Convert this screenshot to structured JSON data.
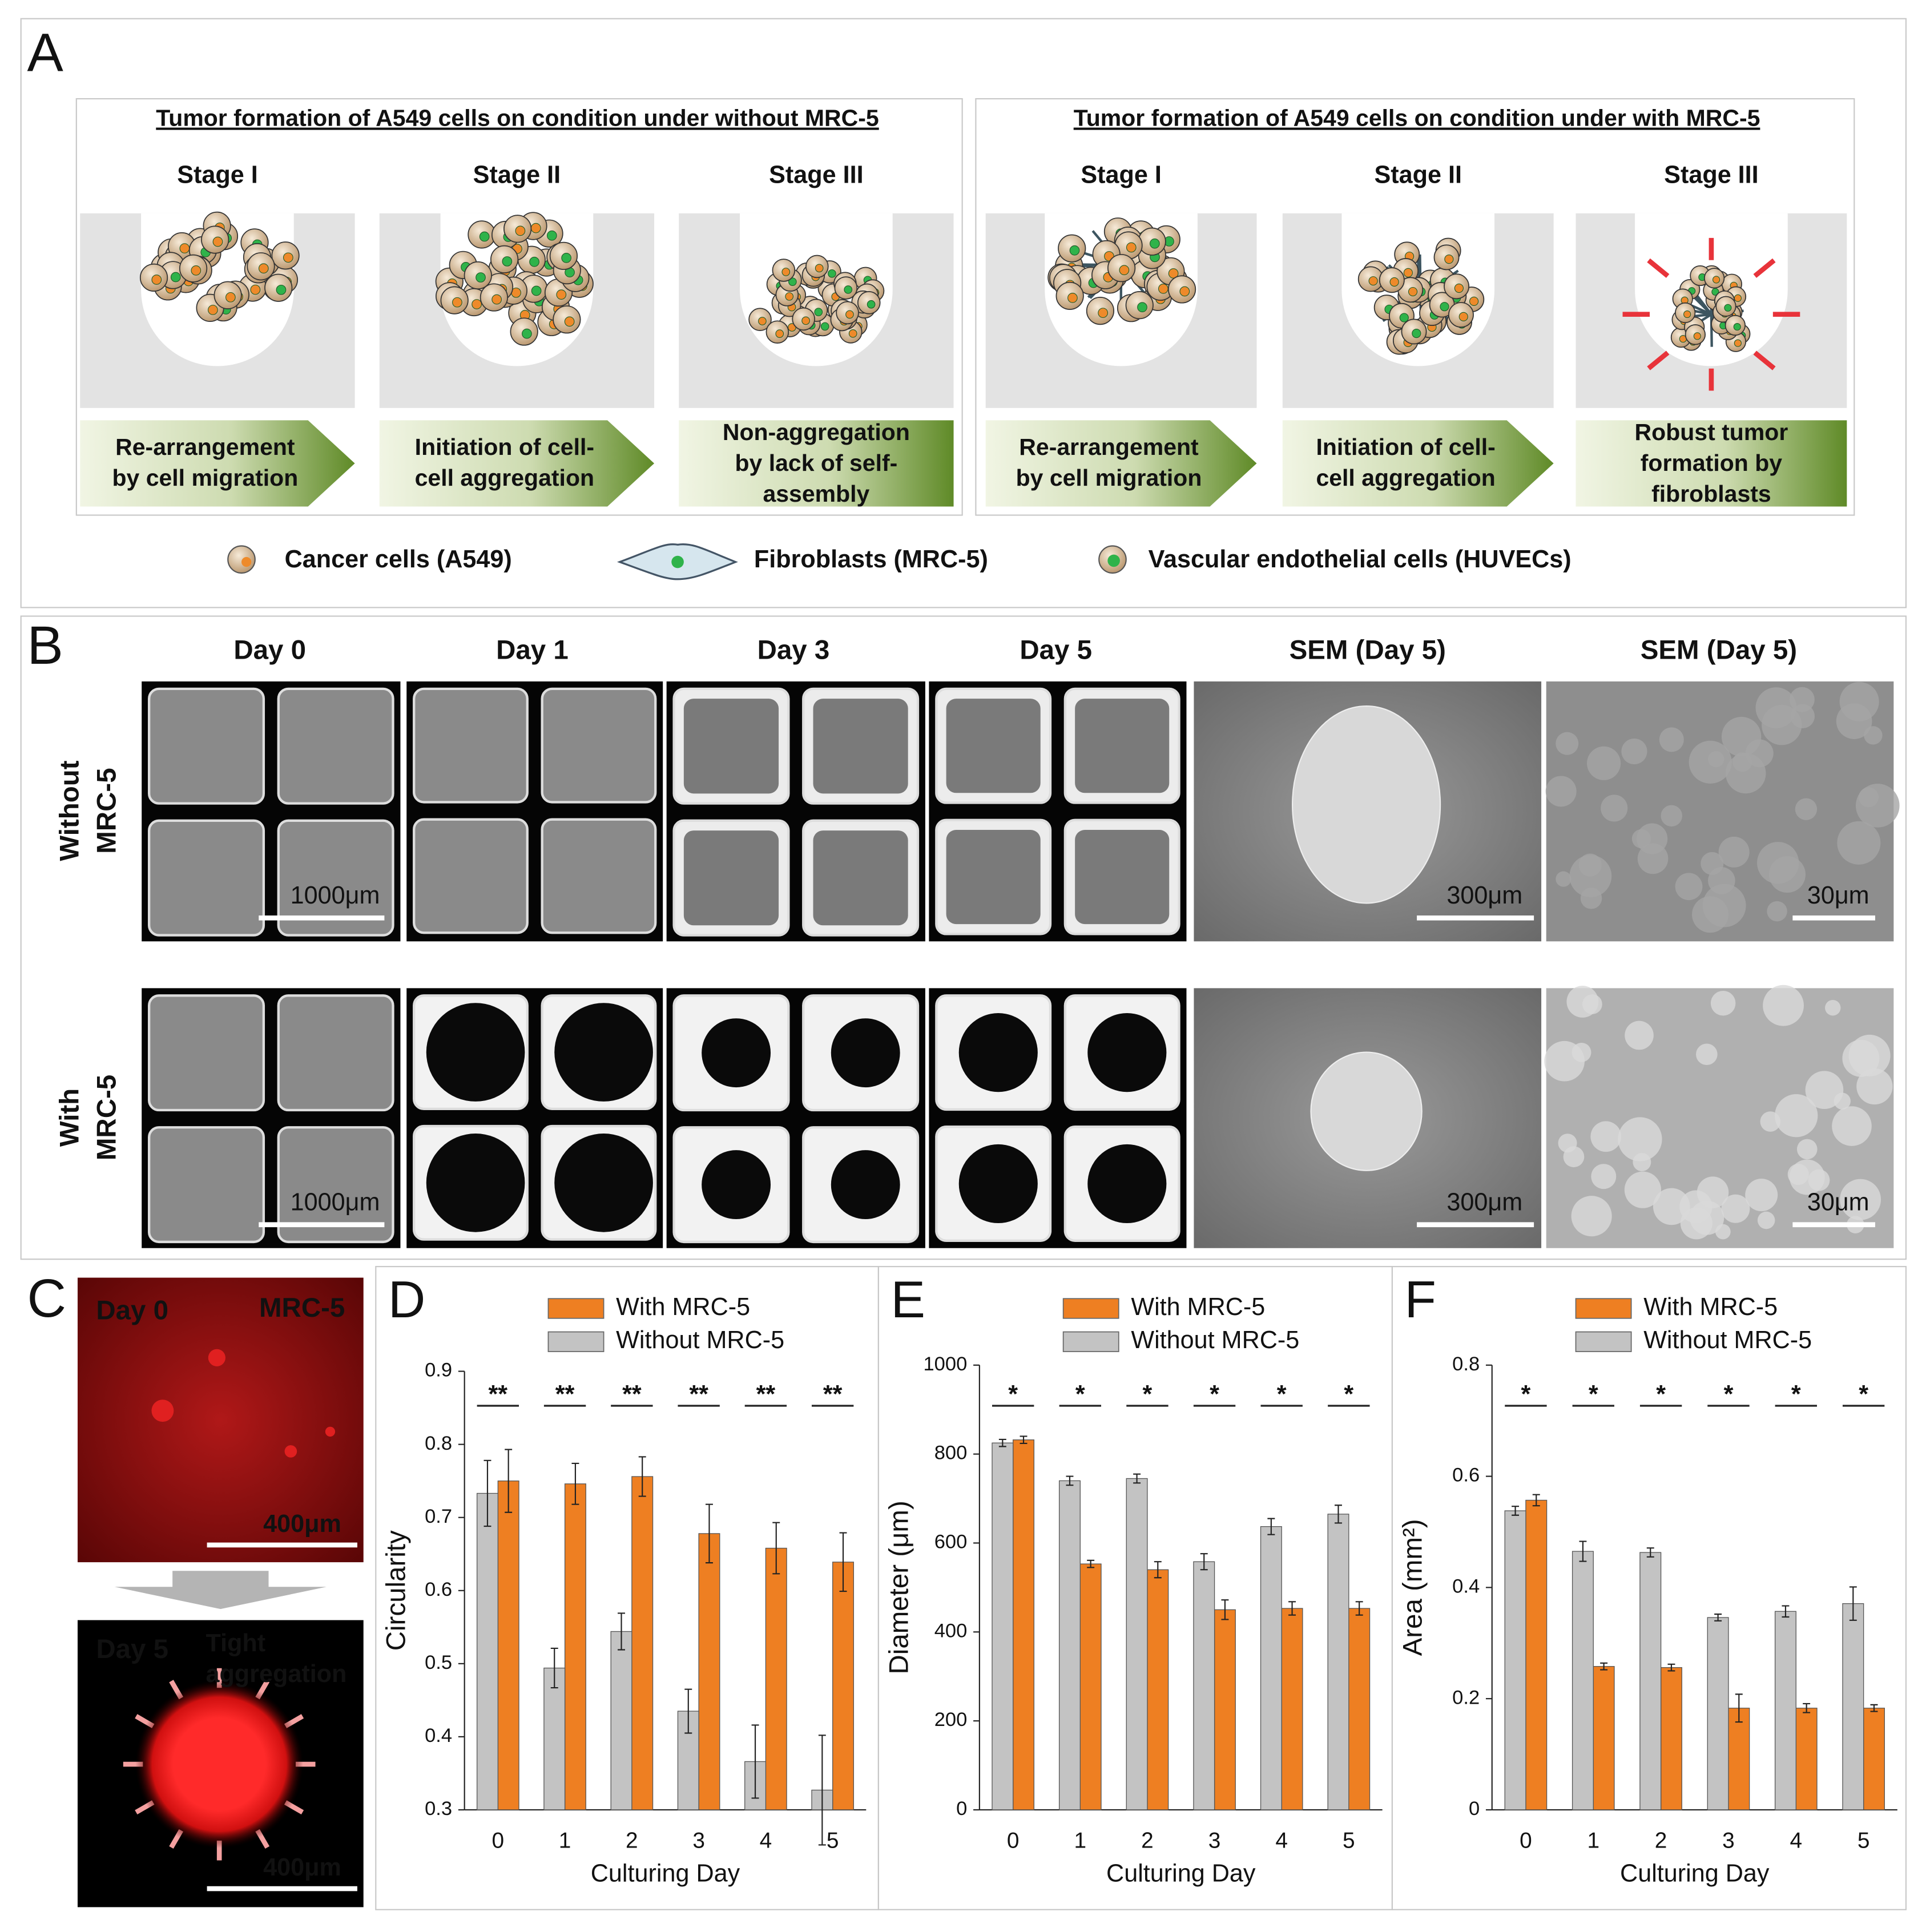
{
  "panel_a": {
    "label": "A",
    "groups": [
      {
        "title": "Tumor formation of A549 cells on condition under without MRC-5",
        "stages": [
          {
            "name": "Stage I",
            "caption": [
              "Re-arrangement",
              "by cell migration"
            ]
          },
          {
            "name": "Stage II",
            "caption": [
              "Initiation of cell-",
              "cell aggregation"
            ]
          },
          {
            "name": "Stage III",
            "caption": [
              "Non-aggregation",
              "by lack of self-",
              "assembly"
            ]
          }
        ]
      },
      {
        "title": "Tumor formation of A549 cells on condition under with MRC-5",
        "stages": [
          {
            "name": "Stage I",
            "caption": [
              "Re-arrangement",
              "by cell migration"
            ]
          },
          {
            "name": "Stage II",
            "caption": [
              "Initiation of cell-",
              "cell aggregation"
            ]
          },
          {
            "name": "Stage III",
            "caption": [
              "Robust tumor",
              "formation by",
              "fibroblasts"
            ]
          }
        ]
      }
    ],
    "legend": [
      "Cancer cells (A549)",
      "Fibroblasts (MRC-5)",
      "Vascular endothelial cells (HUVECs)"
    ]
  },
  "panel_b": {
    "label": "B",
    "columns": [
      "Day 0",
      "Day 1",
      "Day 3",
      "Day 5",
      "SEM (Day 5)",
      "SEM (Day 5)"
    ],
    "rows": [
      {
        "label": [
          "Without",
          "MRC-5"
        ],
        "scale_bars": [
          "1000μm",
          "300μm",
          "30μm"
        ]
      },
      {
        "label": [
          "With",
          "MRC-5"
        ],
        "scale_bars": [
          "1000μm",
          "300μm",
          "30μm"
        ]
      }
    ]
  },
  "panel_c": {
    "label": "C",
    "top": {
      "day": "Day 0",
      "stain": "MRC-5",
      "scale": "400μm"
    },
    "bottom": {
      "day": "Day 5",
      "note": [
        "Tight",
        "aggregation"
      ],
      "scale": "400μm"
    }
  },
  "chart_data": [
    {
      "type": "bar",
      "panel_label": "D",
      "y_label": "Circularity",
      "x_label": "Culturing Day",
      "categories": [
        "0",
        "1",
        "2",
        "3",
        "4",
        "5"
      ],
      "series": [
        {
          "name": "With MRC-5",
          "color": "#ee7f22",
          "values": [
            0.75,
            0.746,
            0.756,
            0.678,
            0.658,
            0.639
          ],
          "errors": [
            0.043,
            0.028,
            0.027,
            0.04,
            0.035,
            0.04
          ]
        },
        {
          "name": "Without MRC-5",
          "color": "#c3c3c3",
          "values": [
            0.733,
            0.494,
            0.544,
            0.435,
            0.366,
            0.327
          ],
          "errors": [
            0.045,
            0.027,
            0.025,
            0.03,
            0.05,
            0.075
          ]
        }
      ],
      "significance": [
        "**",
        "**",
        "**",
        "**",
        "**",
        "**"
      ],
      "ylim": [
        0.3,
        0.9
      ],
      "yticks": [
        0.3,
        0.4,
        0.5,
        0.6,
        0.7,
        0.8,
        0.9
      ]
    },
    {
      "type": "bar",
      "panel_label": "E",
      "y_label": "Diameter (μm)",
      "x_label": "Culturing Day",
      "categories": [
        "0",
        "1",
        "2",
        "3",
        "4",
        "5"
      ],
      "series": [
        {
          "name": "With MRC-5",
          "color": "#ee7f22",
          "values": [
            832,
            553,
            540,
            450,
            453,
            453
          ],
          "errors": [
            8,
            8,
            18,
            22,
            15,
            15
          ]
        },
        {
          "name": "Without MRC-5",
          "color": "#c3c3c3",
          "values": [
            825,
            740,
            745,
            558,
            637,
            665
          ],
          "errors": [
            8,
            10,
            10,
            18,
            18,
            20
          ]
        }
      ],
      "significance": [
        "*",
        "*",
        "*",
        "*",
        "*",
        "*"
      ],
      "ylim": [
        0,
        1000
      ],
      "yticks": [
        0,
        200,
        400,
        600,
        800,
        1000
      ]
    },
    {
      "type": "bar",
      "panel_label": "F",
      "y_label": "Area (mm²)",
      "x_label": "Culturing Day",
      "categories": [
        "0",
        "1",
        "2",
        "3",
        "4",
        "5"
      ],
      "series": [
        {
          "name": "With MRC-5",
          "color": "#ee7f22",
          "values": [
            0.557,
            0.258,
            0.256,
            0.183,
            0.183,
            0.183
          ],
          "errors": [
            0.01,
            0.006,
            0.006,
            0.025,
            0.008,
            0.006
          ]
        },
        {
          "name": "Without MRC-5",
          "color": "#c3c3c3",
          "values": [
            0.538,
            0.465,
            0.463,
            0.346,
            0.357,
            0.371
          ],
          "errors": [
            0.008,
            0.018,
            0.008,
            0.006,
            0.01,
            0.03
          ]
        }
      ],
      "significance": [
        "*",
        "*",
        "*",
        "*",
        "*",
        "*"
      ],
      "ylim": [
        0,
        0.8
      ],
      "yticks": [
        0,
        0.2,
        0.4,
        0.6,
        0.8
      ]
    }
  ]
}
